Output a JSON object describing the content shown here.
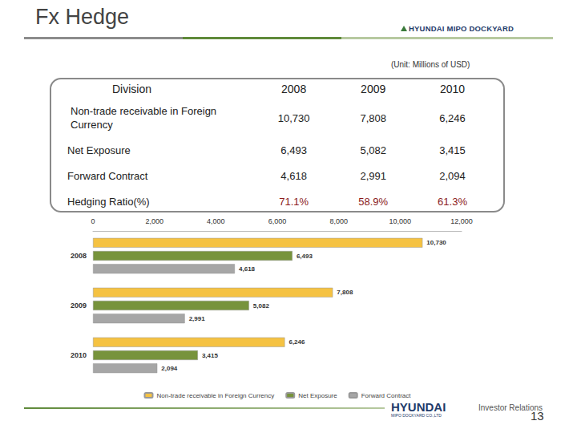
{
  "header": {
    "title": "Fx Hedge",
    "logo": "HYUNDAI MIPO DOCKYARD",
    "unit": "(Unit: Millions of USD)"
  },
  "table": {
    "header": [
      "Division",
      "2008",
      "2009",
      "2010"
    ],
    "rows": [
      [
        "Non-trade receivable in Foreign Currency",
        "10,730",
        "7,808",
        "6,246"
      ],
      [
        "Net Exposure",
        "6,493",
        "5,082",
        "3,415"
      ],
      [
        "Forward Contract",
        "4,618",
        "2,991",
        "2,094"
      ],
      [
        "Hedging Ratio(%)",
        "71.1%",
        "58.9%",
        "61.3%"
      ]
    ]
  },
  "chart_data": {
    "type": "bar",
    "orientation": "horizontal",
    "categories": [
      "2008",
      "2009",
      "2010"
    ],
    "series": [
      {
        "name": "Non-trade receivable in Foreign Currency",
        "color": "#f5c242",
        "values": [
          10730,
          7808,
          6246
        ],
        "value_labels": [
          "10,730",
          "7,808",
          "6,246"
        ]
      },
      {
        "name": "Net Exposure",
        "color": "#77933c",
        "values": [
          6493,
          5082,
          3415
        ],
        "value_labels": [
          "6,493",
          "5,082",
          "3,415"
        ]
      },
      {
        "name": "Forward Contract",
        "color": "#a6a6a6",
        "values": [
          4618,
          2991,
          2094
        ],
        "value_labels": [
          "4,618",
          "2,991",
          "2,094"
        ]
      }
    ],
    "xlim": [
      0,
      12000
    ],
    "xticks": [
      0,
      {
        "value": 2000,
        "label": "2,000"
      },
      {
        "value": 4000,
        "label": "4,000"
      },
      {
        "value": 6000,
        "label": "6,000"
      },
      {
        "value": 8000,
        "label": "8,000"
      },
      {
        "value": 10000,
        "label": "10,000"
      },
      {
        "value": 12000,
        "label": "12,000"
      }
    ],
    "grid": false,
    "legend": "bottom",
    "data_labels": true
  },
  "footer": {
    "logo": "HYUNDAI",
    "logo_sub": "MIPO DOCKYARD CO.,LTD",
    "tagline": "Investor Relations",
    "page": "13"
  }
}
